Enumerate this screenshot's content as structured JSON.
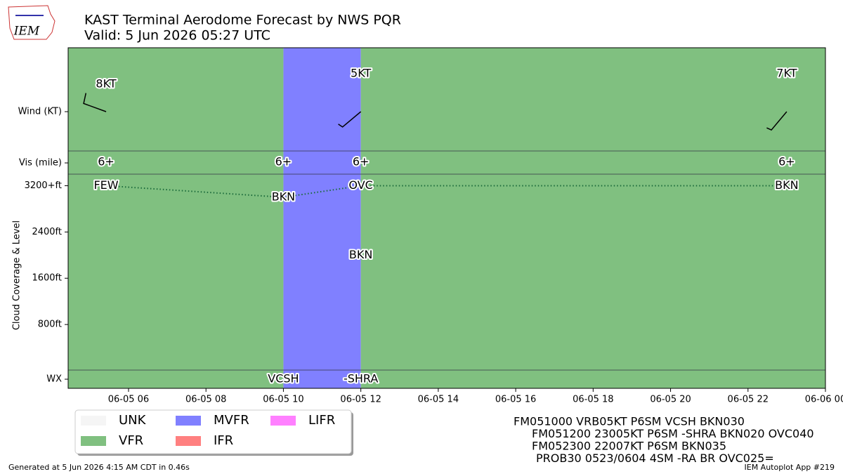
{
  "header": {
    "title": "KAST Terminal Aerodome Forecast by NWS PQR",
    "subtitle": "Valid: 5 Jun 2026 05:27 UTC",
    "logo": "IEM"
  },
  "chart_data": {
    "type": "taf",
    "xlim": [
      4.44,
      24
    ],
    "xticks": [
      {
        "value": 6,
        "label": "06-05 06"
      },
      {
        "value": 8,
        "label": "06-05 08"
      },
      {
        "value": 10,
        "label": "06-05 10"
      },
      {
        "value": 12,
        "label": "06-05 12"
      },
      {
        "value": 14,
        "label": "06-05 14"
      },
      {
        "value": 16,
        "label": "06-05 16"
      },
      {
        "value": 18,
        "label": "06-05 18"
      },
      {
        "value": 20,
        "label": "06-05 20"
      },
      {
        "value": 22,
        "label": "06-05 22"
      },
      {
        "value": 24,
        "label": "06-06 00"
      }
    ],
    "ylabel": "Cloud Coverage & Level",
    "ylim": [
      0,
      3400
    ],
    "yticks": [
      {
        "value": 800,
        "label": "800ft"
      },
      {
        "value": 1600,
        "label": "1600ft"
      },
      {
        "value": 2400,
        "label": "2400ft"
      },
      {
        "value": 3200,
        "label": "3200+ft"
      }
    ],
    "row_labels": {
      "wind": "Wind (KT)",
      "vis": "Vis (mile)",
      "wx": "WX"
    },
    "legend": [
      {
        "name": "UNK",
        "color": "#f5f5f5"
      },
      {
        "name": "VFR",
        "color": "#80c080"
      },
      {
        "name": "MVFR",
        "color": "#8080ff"
      },
      {
        "name": "IFR",
        "color": "#ff8080"
      },
      {
        "name": "LIFR",
        "color": "#ff80ff"
      }
    ],
    "bands": {
      "x": [
        4.44,
        10,
        12
      ],
      "category": [
        1,
        2,
        1
      ]
    },
    "wind": {
      "x": [
        5.42,
        12,
        23
      ],
      "values": [
        8,
        5,
        7
      ],
      "value_labels": [
        "8KT",
        "5KT",
        "7KT"
      ],
      "direction": [
        290,
        230,
        220
      ]
    },
    "vis": {
      "x": [
        5.42,
        10,
        12,
        23
      ],
      "values": [
        6,
        6,
        6,
        6
      ],
      "value_labels": [
        "6+",
        "6+",
        "6+",
        "6+"
      ]
    },
    "clouds": {
      "series": [
        {
          "color": "#1a6a3a",
          "x": [
            5.42,
            10,
            12,
            23
          ],
          "values": [
            3200,
            3000,
            3200,
            3200
          ],
          "labels": [
            "FEW",
            "BKN",
            "OVC",
            "BKN"
          ]
        },
        {
          "x": [
            12
          ],
          "values": [
            2000
          ],
          "labels": [
            "BKN"
          ]
        }
      ]
    },
    "wx": {
      "x": [
        10,
        12
      ],
      "labels": [
        "VCSH",
        "-SHRA"
      ]
    }
  },
  "taf_text": [
    "FM051000 VRB05KT P6SM VCSH BKN030",
    "FM051200 23005KT P6SM -SHRA BKN020 OVC040",
    "FM052300 22007KT P6SM BKN035",
    "PROB30 0523/0604 4SM -RA BR OVC025="
  ],
  "footer": {
    "left": "Generated at 5 Jun 2026 4:15 AM CDT in 0.46s",
    "right": "IEM Autoplot App #219"
  }
}
